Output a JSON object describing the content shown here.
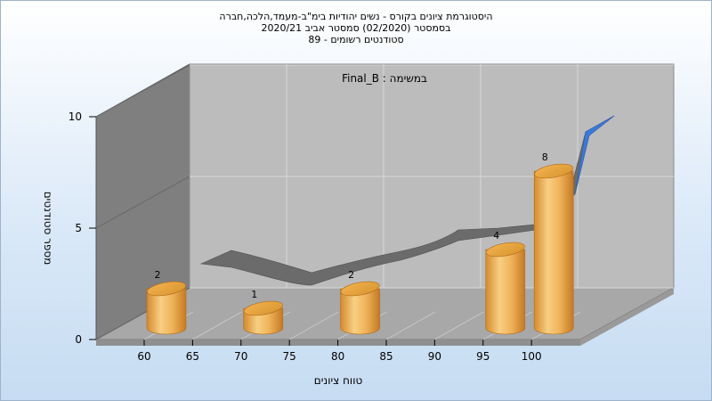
{
  "chart_data": {
    "type": "bar",
    "title_lines": [
      "היסטוגרמת ציונים בקורס - נשים יהודיות בימ\"ב-מעמד,הלכה,חברה",
      "בסמסטר  (02/2020)  סמסטר אביב 2020/21",
      "סטודנטים רשומים - 89"
    ],
    "annotation": "במשימה : Final_B",
    "xlabel": "טווח ציונים",
    "ylabel": "מספר סטודנטים",
    "x_ticks": [
      "60",
      "65",
      "70",
      "75",
      "80",
      "85",
      "90",
      "95",
      "100"
    ],
    "y_ticks": [
      "0",
      "5",
      "10"
    ],
    "ylim": [
      0,
      10
    ],
    "bars": [
      {
        "x": 60,
        "value": 2,
        "label": "2"
      },
      {
        "x": 70,
        "value": 1,
        "label": "1"
      },
      {
        "x": 80,
        "value": 2,
        "label": "2"
      },
      {
        "x": 95,
        "value": 4,
        "label": "4"
      },
      {
        "x": 100,
        "value": 8,
        "label": "8"
      }
    ],
    "grid": true,
    "colors": {
      "bar": "#e8a848",
      "bar_highlight": "#fbd488",
      "curve": "#6e6e6e",
      "curve_tail": "#3a78d6",
      "back_wall": "#b9b9b9",
      "side_wall": "#7d7d7d",
      "floor": "#a9a9a9"
    }
  }
}
